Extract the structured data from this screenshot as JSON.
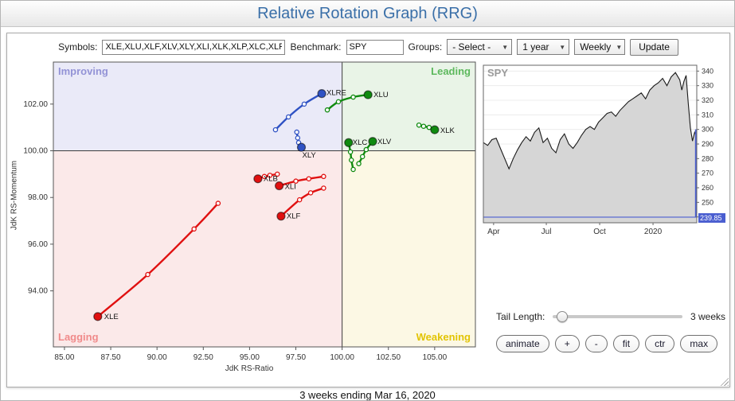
{
  "header": {
    "title": "Relative Rotation Graph (RRG)"
  },
  "icons": {
    "dropdown_arrow": "▼"
  },
  "toolbar": {
    "symbols_label": "Symbols:",
    "symbols_value": "XLE,XLU,XLF,XLV,XLY,XLI,XLK,XLP,XLC,XLRE,XLB",
    "benchmark_label": "Benchmark:",
    "benchmark_value": "SPY",
    "groups_label": "Groups:",
    "groups_value": "- Select -",
    "period_value": "1 year",
    "frequency_value": "Weekly",
    "update_label": "Update"
  },
  "controls": {
    "tail_length_label": "Tail Length:",
    "tail_length_value": "3 weeks",
    "buttons": [
      "animate",
      "+",
      "-",
      "fit",
      "ctr",
      "max"
    ]
  },
  "footer": {
    "caption": "3 weeks ending Mar 16, 2020"
  },
  "chart_data": [
    {
      "type": "scatter",
      "name": "RRG",
      "xlabel": "JdK RS-Ratio",
      "ylabel": "JdK RS-Momentum",
      "xlim": [
        84.4,
        107.2
      ],
      "ylim": [
        91.6,
        103.8
      ],
      "xticks": [
        85,
        87.5,
        90,
        92.5,
        95,
        97.5,
        100,
        102.5,
        105
      ],
      "yticks": [
        94,
        96,
        98,
        100,
        102
      ],
      "center": [
        100,
        100
      ],
      "quadrants": [
        {
          "id": "improving",
          "label": "Improving",
          "bg": "#eaeaf8",
          "text_color": "#9393d6",
          "corner": "top-left"
        },
        {
          "id": "leading",
          "label": "Leading",
          "bg": "#e9f4e7",
          "text_color": "#5db85d",
          "corner": "top-right"
        },
        {
          "id": "lagging",
          "label": "Lagging",
          "bg": "#fbe9e9",
          "text_color": "#f08a8a",
          "corner": "bottom-left"
        },
        {
          "id": "weakening",
          "label": "Weakening",
          "bg": "#fcf8e4",
          "text_color": "#e2c404",
          "corner": "bottom-right"
        }
      ],
      "series": [
        {
          "name": "XLE",
          "color": "#e01010",
          "points": [
            [
              93.3,
              97.75
            ],
            [
              92.0,
              96.65
            ],
            [
              89.5,
              94.7
            ],
            [
              86.8,
              92.9
            ]
          ],
          "label_offset": [
            8,
            3
          ]
        },
        {
          "name": "XLF",
          "color": "#e01010",
          "points": [
            [
              99.0,
              98.4
            ],
            [
              98.3,
              98.2
            ],
            [
              97.7,
              97.9
            ],
            [
              96.7,
              97.2
            ]
          ],
          "label_offset": [
            7,
            3
          ]
        },
        {
          "name": "XLI",
          "color": "#e01010",
          "points": [
            [
              99.0,
              98.9
            ],
            [
              98.2,
              98.8
            ],
            [
              97.5,
              98.7
            ],
            [
              96.6,
              98.5
            ]
          ],
          "label_offset": [
            7,
            4
          ]
        },
        {
          "name": "XLB",
          "color": "#e01010",
          "points": [
            [
              96.5,
              99.0
            ],
            [
              96.1,
              98.95
            ],
            [
              95.8,
              98.9
            ],
            [
              95.45,
              98.8
            ]
          ],
          "label_offset": [
            7,
            3
          ]
        },
        {
          "name": "XLY",
          "color": "#2f52c4",
          "points": [
            [
              97.55,
              100.8
            ],
            [
              97.6,
              100.55
            ],
            [
              97.65,
              100.35
            ],
            [
              97.8,
              100.15
            ]
          ],
          "label_offset": [
            1,
            13
          ]
        },
        {
          "name": "XLRE",
          "color": "#2f52c4",
          "points": [
            [
              96.4,
              100.9
            ],
            [
              97.1,
              101.45
            ],
            [
              97.95,
              102.0
            ],
            [
              98.9,
              102.45
            ]
          ],
          "label_offset": [
            6,
            2
          ]
        },
        {
          "name": "XLU",
          "color": "#0f8a0f",
          "points": [
            [
              99.2,
              101.75
            ],
            [
              99.8,
              102.1
            ],
            [
              100.6,
              102.3
            ],
            [
              101.4,
              102.4
            ]
          ],
          "label_offset": [
            7,
            3
          ]
        },
        {
          "name": "XLC",
          "color": "#0f8a0f",
          "points": [
            [
              100.6,
              99.2
            ],
            [
              100.5,
              99.6
            ],
            [
              100.45,
              99.95
            ],
            [
              100.35,
              100.35
            ]
          ],
          "label_offset": [
            5,
            3
          ]
        },
        {
          "name": "XLV",
          "color": "#0f8a0f",
          "points": [
            [
              100.9,
              99.45
            ],
            [
              101.1,
              99.75
            ],
            [
              101.3,
              100.05
            ],
            [
              101.65,
              100.4
            ]
          ],
          "label_offset": [
            6,
            3
          ]
        },
        {
          "name": "XLK",
          "color": "#0f8a0f",
          "points": [
            [
              104.15,
              101.1
            ],
            [
              104.4,
              101.05
            ],
            [
              104.7,
              101.0
            ],
            [
              105.0,
              100.9
            ]
          ],
          "label_offset": [
            7,
            4
          ]
        }
      ]
    },
    {
      "type": "area",
      "name": "SPY",
      "title": "SPY",
      "ylim": [
        236,
        344
      ],
      "yticks": [
        240,
        250,
        260,
        270,
        280,
        290,
        300,
        310,
        320,
        330,
        340
      ],
      "xticks": [
        {
          "pos": 0.048,
          "label": "Apr"
        },
        {
          "pos": 0.295,
          "label": "Jul"
        },
        {
          "pos": 0.545,
          "label": "Oct"
        },
        {
          "pos": 0.795,
          "label": "2020"
        }
      ],
      "last_price": 239.85,
      "drop_from": 300,
      "line_color": "#1a1a1a",
      "fill_color": "#d6d6d6",
      "highlight_color": "#4a5ed0",
      "prices": [
        [
          0,
          291
        ],
        [
          0.02,
          289
        ],
        [
          0.04,
          293
        ],
        [
          0.06,
          294
        ],
        [
          0.08,
          287
        ],
        [
          0.1,
          280
        ],
        [
          0.12,
          273
        ],
        [
          0.14,
          280
        ],
        [
          0.16,
          286
        ],
        [
          0.18,
          291
        ],
        [
          0.2,
          295
        ],
        [
          0.22,
          292
        ],
        [
          0.24,
          298
        ],
        [
          0.26,
          301
        ],
        [
          0.28,
          291
        ],
        [
          0.3,
          294
        ],
        [
          0.32,
          287
        ],
        [
          0.34,
          284
        ],
        [
          0.36,
          293
        ],
        [
          0.38,
          297
        ],
        [
          0.4,
          290
        ],
        [
          0.42,
          287
        ],
        [
          0.44,
          291
        ],
        [
          0.46,
          296
        ],
        [
          0.48,
          300
        ],
        [
          0.5,
          302
        ],
        [
          0.52,
          300
        ],
        [
          0.54,
          305
        ],
        [
          0.56,
          308
        ],
        [
          0.58,
          311
        ],
        [
          0.6,
          312
        ],
        [
          0.62,
          309
        ],
        [
          0.64,
          313
        ],
        [
          0.66,
          316
        ],
        [
          0.68,
          319
        ],
        [
          0.7,
          321
        ],
        [
          0.72,
          323
        ],
        [
          0.74,
          325
        ],
        [
          0.76,
          321
        ],
        [
          0.78,
          327
        ],
        [
          0.8,
          330
        ],
        [
          0.82,
          332
        ],
        [
          0.84,
          335
        ],
        [
          0.86,
          330
        ],
        [
          0.88,
          336
        ],
        [
          0.9,
          339
        ],
        [
          0.92,
          334
        ],
        [
          0.93,
          327
        ],
        [
          0.94,
          333
        ],
        [
          0.95,
          337
        ],
        [
          0.96,
          318
        ],
        [
          0.97,
          301
        ],
        [
          0.98,
          292
        ],
        [
          0.99,
          298
        ],
        [
          1,
          295
        ]
      ]
    }
  ]
}
